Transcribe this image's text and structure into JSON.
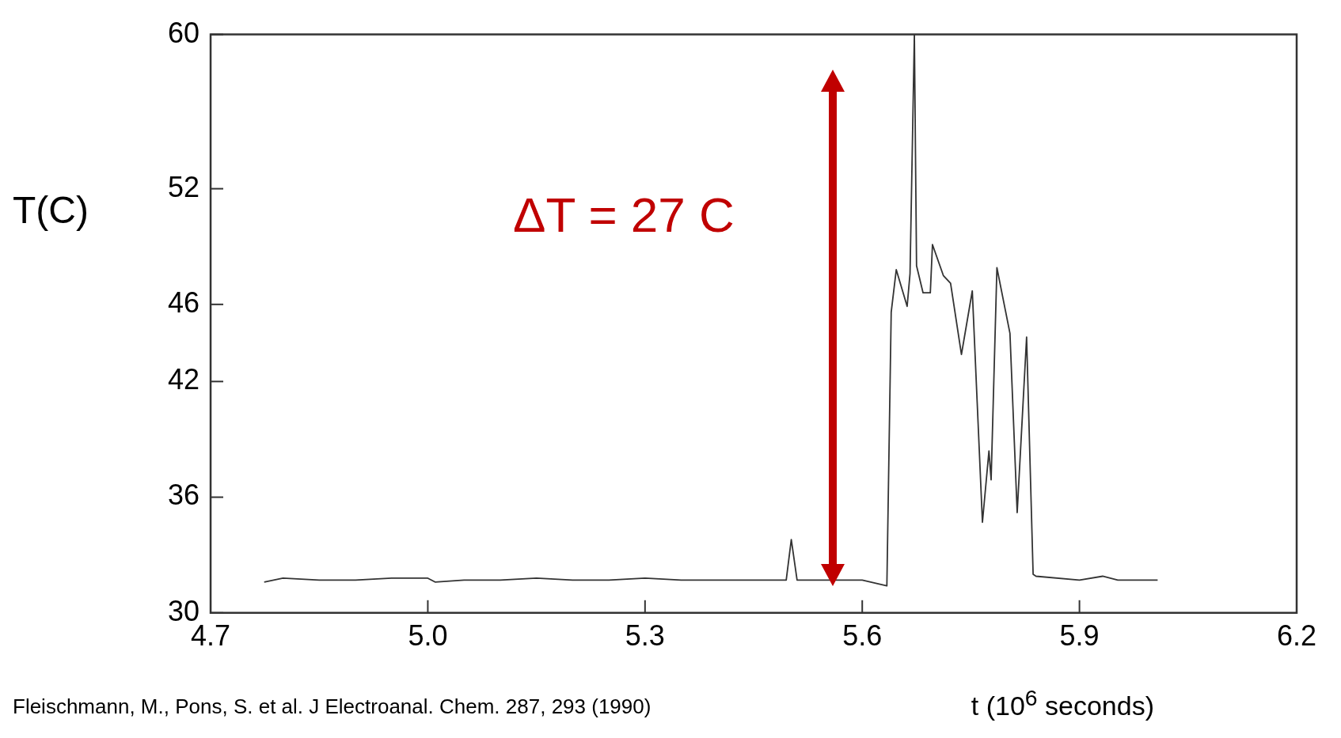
{
  "chart_data": {
    "type": "line",
    "xlabel": "t (10$^{6}$ seconds)",
    "ylabel": "T(C)",
    "x": [
      4.774,
      4.8,
      4.85,
      4.9,
      4.95,
      5.0,
      5.01,
      5.05,
      5.1,
      5.15,
      5.2,
      5.25,
      5.3,
      5.35,
      5.4,
      5.45,
      5.495,
      5.502,
      5.51,
      5.55,
      5.6,
      5.634,
      5.64,
      5.647,
      5.662,
      5.666,
      5.672,
      5.675,
      5.684,
      5.694,
      5.697,
      5.712,
      5.722,
      5.737,
      5.752,
      5.766,
      5.775,
      5.778,
      5.786,
      5.804,
      5.814,
      5.827,
      5.836,
      5.84,
      5.9,
      5.932,
      5.953,
      6.008
    ],
    "series": [
      {
        "color": "#333333",
        "values": [
          31.6,
          31.8,
          31.7,
          31.7,
          31.8,
          31.8,
          31.6,
          31.7,
          31.7,
          31.8,
          31.7,
          31.7,
          31.8,
          31.7,
          31.7,
          31.7,
          31.7,
          33.8,
          31.7,
          31.7,
          31.7,
          31.4,
          45.6,
          47.8,
          45.9,
          47.6,
          60,
          48.0,
          46.6,
          46.6,
          49.1,
          47.5,
          47.1,
          43.4,
          46.7,
          34.7,
          38.4,
          36.9,
          47.9,
          44.5,
          35.2,
          44.3,
          32.0,
          31.9,
          31.7,
          31.9,
          31.7,
          31.7
        ]
      }
    ],
    "xlim": [
      4.7,
      6.2
    ],
    "xticks": [
      4.7,
      {
        "value": 5,
        "label": "5.0"
      },
      5.3,
      5.6,
      5.9,
      6.2
    ],
    "ylim": [
      30,
      60
    ],
    "yticks": [
      30,
      36,
      42,
      46,
      52,
      60
    ],
    "grid": false,
    "legend": false,
    "marker": "none",
    "line_style": "solid",
    "annotations": [
      "ΔT = 27 C",
      "Fleischmann, M., Pons, S. et al. J Electroanal. Chem. 287, 293 (1990)"
    ]
  }
}
